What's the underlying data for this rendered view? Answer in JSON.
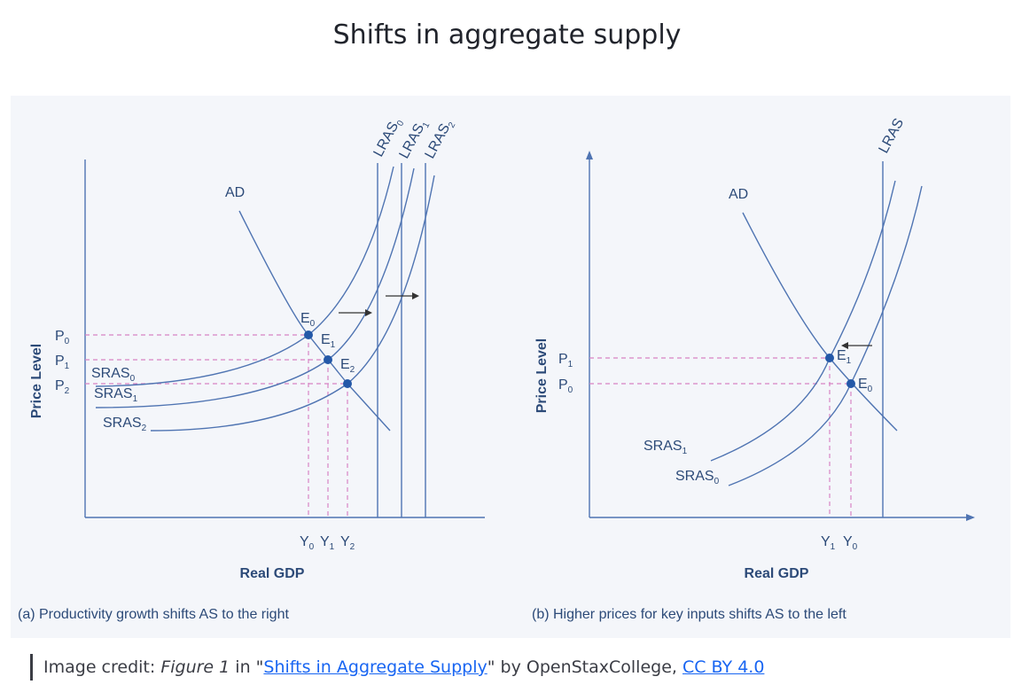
{
  "page": {
    "title": "Shifts in aggregate supply"
  },
  "panel_a": {
    "y_axis_label": "Price Level",
    "x_axis_label": "Real GDP",
    "caption": "(a) Productivity growth shifts AS to the right",
    "ad_label": "AD",
    "lras_labels": [
      "LRAS0",
      "LRAS1",
      "LRAS2"
    ],
    "sras_labels": [
      "SRAS0",
      "SRAS1",
      "SRAS2"
    ],
    "price_labels": [
      "P0",
      "P1",
      "P2"
    ],
    "equilibrium_labels": [
      "E0",
      "E1",
      "E2"
    ],
    "output_labels": [
      "Y0",
      "Y1",
      "Y2"
    ]
  },
  "panel_b": {
    "y_axis_label": "Price Level",
    "x_axis_label": "Real GDP",
    "caption": "(b) Higher prices for key inputs shifts AS to the left",
    "ad_label": "AD",
    "lras_label": "LRAS",
    "sras_labels": [
      "SRAS1",
      "SRAS0"
    ],
    "price_labels": [
      "P1",
      "P0"
    ],
    "equilibrium_labels": [
      "E1",
      "E0"
    ],
    "output_labels": [
      "Y1",
      "Y0"
    ]
  },
  "credit": {
    "prefix": "Image credit: ",
    "figure_ref": "Figure 1",
    "in_text": " in \"",
    "link_text": "Shifts in Aggregate Supply",
    "by_text": "\" by OpenStaxCollege, ",
    "license_text": "CC BY 4.0"
  },
  "colors": {
    "curve": "#4f74b2",
    "dashed_guide": "#d884c4",
    "label_text": "#2c4a78",
    "panel_background": "#f4f6fa"
  }
}
